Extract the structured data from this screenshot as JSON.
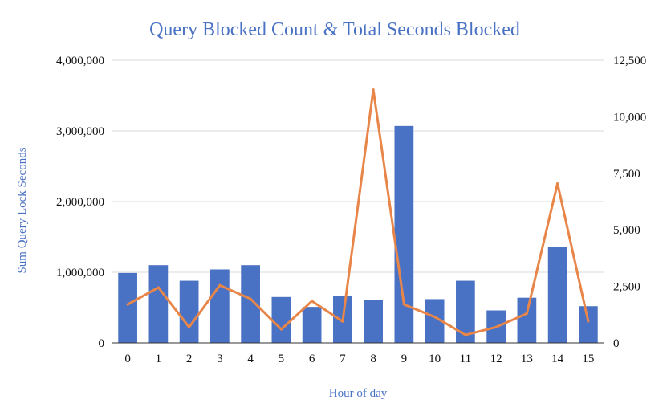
{
  "chart_data": {
    "type": "bar",
    "title": "Query Blocked Count & Total Seconds Blocked",
    "xlabel": "Hour of day",
    "ylabel": "Sum Query Lock Seconds",
    "y2label": "",
    "categories": [
      "0",
      "1",
      "2",
      "3",
      "4",
      "5",
      "6",
      "7",
      "8",
      "9",
      "10",
      "11",
      "12",
      "13",
      "14",
      "15"
    ],
    "ylim": [
      0,
      4000000
    ],
    "y2lim": [
      0,
      12500
    ],
    "yticks": [
      {
        "value": 0,
        "label": "0"
      },
      {
        "value": 1000000,
        "label": "1,000,000"
      },
      {
        "value": 2000000,
        "label": "2,000,000"
      },
      {
        "value": 3000000,
        "label": "3,000,000"
      },
      {
        "value": 4000000,
        "label": "4,000,000"
      }
    ],
    "y2ticks": [
      {
        "value": 0,
        "label": "0"
      },
      {
        "value": 2500,
        "label": "2,500"
      },
      {
        "value": 5000,
        "label": "5,000"
      },
      {
        "value": 7500,
        "label": "7,500"
      },
      {
        "value": 10000,
        "label": "10,000"
      },
      {
        "value": 12500,
        "label": "12,500"
      }
    ],
    "grid": true,
    "legend": "none",
    "series": [
      {
        "type": "bar",
        "axis": "left",
        "color": "#4a72c4",
        "values": [
          990000,
          1100000,
          880000,
          1040000,
          1100000,
          650000,
          510000,
          670000,
          610000,
          3070000,
          620000,
          880000,
          460000,
          640000,
          1360000,
          520000
        ]
      },
      {
        "type": "line",
        "axis": "right",
        "color": "#e8864a",
        "values": [
          1700,
          2450,
          700,
          2550,
          1950,
          600,
          1850,
          950,
          11200,
          1700,
          1150,
          350,
          700,
          1300,
          7050,
          950
        ]
      }
    ]
  }
}
